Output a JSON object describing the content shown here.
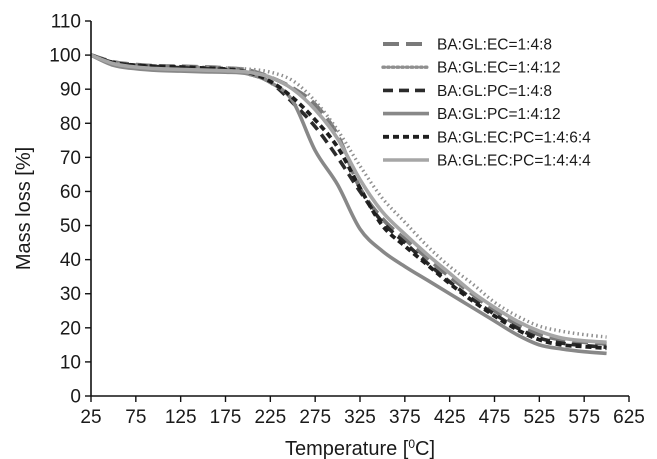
{
  "chart_data": {
    "type": "line",
    "title": "",
    "xlabel": "Temperature [°C]",
    "ylabel": "Mass loss [%]",
    "xlim": [
      25,
      625
    ],
    "ylim": [
      0,
      110
    ],
    "xticks": [
      25,
      75,
      125,
      175,
      225,
      275,
      325,
      375,
      425,
      475,
      525,
      575,
      625
    ],
    "yticks": [
      0,
      10,
      20,
      30,
      40,
      50,
      60,
      70,
      80,
      90,
      100,
      110
    ],
    "grid": false,
    "legend_position": "top-right",
    "series": [
      {
        "name": "BA:GL:EC=1:4:8",
        "color": "#7a7a7a",
        "dash": "long-dash",
        "x": [
          25,
          50,
          75,
          100,
          125,
          150,
          175,
          200,
          225,
          250,
          275,
          300,
          325,
          350,
          375,
          400,
          425,
          450,
          475,
          500,
          525,
          550,
          575,
          600
        ],
        "y": [
          100,
          98,
          97.2,
          96.8,
          96.7,
          96.5,
          96.2,
          95.6,
          93.5,
          90.3,
          85.5,
          76.5,
          61,
          52,
          46,
          40.5,
          35,
          30,
          25,
          21,
          18,
          16.5,
          15.8,
          15.3
        ]
      },
      {
        "name": "BA:GL:EC=1:4:12",
        "color": "#8f8f8f",
        "dash": "dotted",
        "x": [
          25,
          50,
          75,
          100,
          125,
          150,
          175,
          200,
          225,
          250,
          275,
          300,
          325,
          350,
          375,
          400,
          425,
          450,
          475,
          500,
          525,
          550,
          575,
          600
        ],
        "y": [
          100,
          97.8,
          97.1,
          96.8,
          96.6,
          96.4,
          96.2,
          95.9,
          95,
          92.5,
          86.5,
          78,
          67.5,
          58,
          51,
          44,
          38,
          33,
          27.5,
          23.5,
          20.5,
          19,
          18,
          17.3
        ]
      },
      {
        "name": "BA:GL:PC=1:4:8",
        "color": "#2b2b2b",
        "dash": "dash",
        "x": [
          25,
          50,
          75,
          100,
          125,
          150,
          175,
          200,
          225,
          250,
          275,
          300,
          325,
          350,
          375,
          400,
          425,
          450,
          475,
          500,
          525,
          550,
          575,
          600
        ],
        "y": [
          100,
          97.8,
          97,
          96.6,
          96.3,
          96,
          95.7,
          94.5,
          92,
          86,
          79,
          70,
          60,
          51,
          45,
          39,
          33.5,
          28.5,
          24,
          20,
          17,
          15.5,
          14.8,
          14.3
        ]
      },
      {
        "name": "BA:GL:PC=1:4:12",
        "color": "#888888",
        "dash": "solid",
        "x": [
          25,
          50,
          75,
          100,
          125,
          150,
          175,
          200,
          225,
          250,
          275,
          300,
          325,
          350,
          375,
          400,
          425,
          450,
          475,
          500,
          525,
          550,
          575,
          600
        ],
        "y": [
          100,
          97,
          96,
          95.5,
          95.3,
          95.1,
          95,
          94.5,
          92,
          86.5,
          72,
          62,
          49,
          42.5,
          38,
          34,
          30,
          26,
          22,
          18,
          15,
          13.8,
          13,
          12.5
        ]
      },
      {
        "name": "BA:GL:EC:PC=1:4:6:4",
        "color": "#1f1f1f",
        "dash": "short-dash",
        "x": [
          25,
          50,
          75,
          100,
          125,
          150,
          175,
          200,
          225,
          250,
          275,
          300,
          325,
          350,
          375,
          400,
          425,
          450,
          475,
          500,
          525,
          550,
          575,
          600
        ],
        "y": [
          100,
          97.8,
          97,
          96.7,
          96.5,
          96.2,
          95.9,
          95,
          92.3,
          87.5,
          81,
          73,
          61,
          50,
          44,
          38.5,
          33,
          28,
          23.5,
          19.5,
          16.5,
          15,
          14.5,
          14
        ]
      },
      {
        "name": "BA:GL:EC:PC=1:4:4:4",
        "color": "#a6a6a6",
        "dash": "solid",
        "x": [
          25,
          50,
          75,
          100,
          125,
          150,
          175,
          200,
          225,
          250,
          275,
          300,
          325,
          350,
          375,
          400,
          425,
          450,
          475,
          500,
          525,
          550,
          575,
          600
        ],
        "y": [
          100,
          97.5,
          96.5,
          96,
          95.8,
          95.6,
          95.4,
          95,
          93.5,
          90,
          84,
          75.5,
          63.5,
          54,
          47.5,
          41.5,
          36,
          30.5,
          26,
          22,
          19,
          17,
          16.2,
          15.8
        ]
      }
    ]
  }
}
